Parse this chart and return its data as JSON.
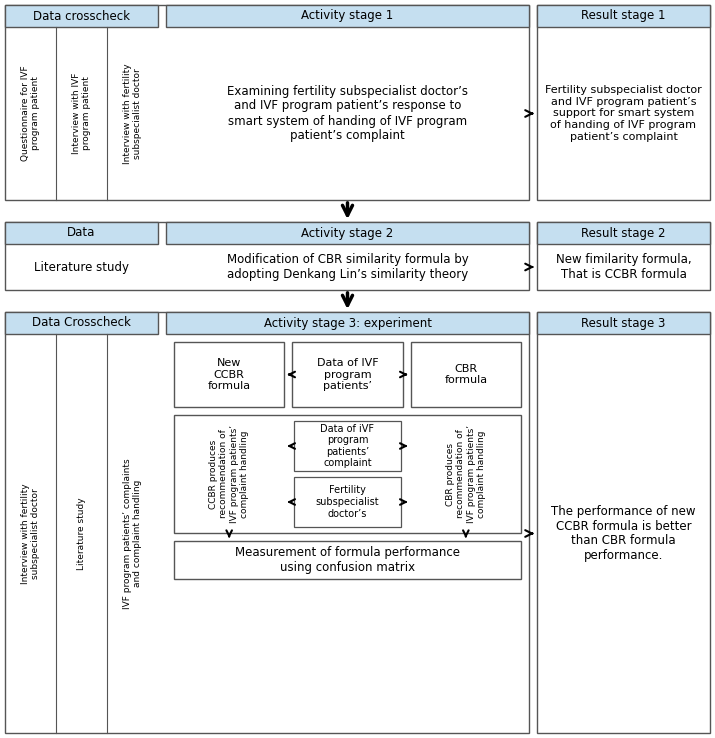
{
  "bg_color": "#ffffff",
  "header_bg": "#c5dff0",
  "box_bg": "#ffffff",
  "border_color": "#555555",
  "stage1": {
    "data_crosscheck_header": "Data crosscheck",
    "activity_header": "Activity stage 1",
    "result_header": "Result stage 1",
    "col1_items": [
      "Questionnaire for IVF\nprogram patient",
      "Interview with IVF\nprogram patient",
      "Interview with fertility\nsubspecialist doctor"
    ],
    "activity_text": "Examining fertility subspecialist doctor’s\nand IVF program patient’s response to\nsmart system of handing of IVF program\npatient’s complaint",
    "result_text": "Fertility subspecialist doctor\nand IVF program patient’s\nsupport for smart system\nof handing of IVF program\npatient’s complaint"
  },
  "stage2": {
    "data_header": "Data",
    "activity_header": "Activity stage 2",
    "result_header": "Result stage 2",
    "data_text": "Literature study",
    "activity_text": "Modification of CBR similarity formula by\nadopting Denkang Lin’s similarity theory",
    "result_text": "New fimilarity formula,\nThat is CCBR formula"
  },
  "stage3": {
    "data_crosscheck_header": "Data Crosscheck",
    "activity_header": "Activity stage 3: experiment",
    "result_header": "Result stage 3",
    "col1_items": [
      "Interview with fertility\nsubspecialist doctor",
      "Literature study",
      "IVF program patients’ complaints\nand complaint handling"
    ],
    "box_new_ccbr": "New\nCCBR\nformula",
    "box_ivf_data": "Data of IVF\nprogram\npatients’",
    "box_cbr": "CBR\nformula",
    "box_ccbr_produces": "CCBR produces\nrecommendation of\nIVF program patients’\ncomplaint handling",
    "box_ivf_complaint": "Data of iVF\nprogram\npatients’\ncomplaint",
    "box_cbr_produces": "CBR produces\nrecommendation of\nIVF program patients’\ncomplaint handling",
    "box_fertility": "Fertility\nsubspecialist\ndoctor’s",
    "box_measurement": "Measurement of formula performance\nusing confusion matrix",
    "result_text": "The performance of new\nCCBR formula is better\nthan CBR formula\nperformance."
  }
}
